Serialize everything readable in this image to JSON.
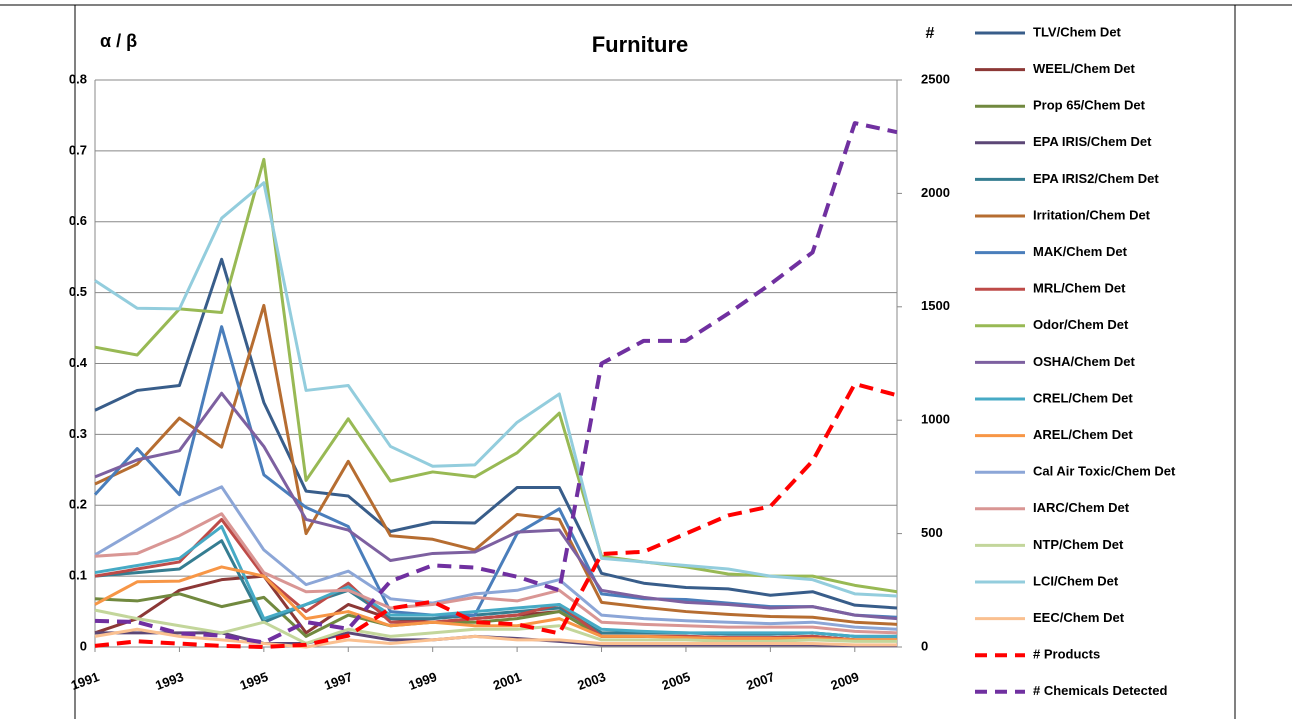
{
  "chart_data": {
    "type": "line",
    "title": "Furniture",
    "y_label": "α / β",
    "y2_label": "#",
    "x": [
      1991,
      1992,
      1993,
      1994,
      1995,
      1996,
      1997,
      1998,
      1999,
      2000,
      2001,
      2002,
      2003,
      2004,
      2005,
      2006,
      2007,
      2008,
      2009,
      2010
    ],
    "xlim": [
      1991,
      2010
    ],
    "xticks": [
      1991,
      1993,
      1995,
      1997,
      1999,
      2001,
      2003,
      2005,
      2007,
      2009
    ],
    "ylim": [
      0,
      0.8
    ],
    "yticks": [
      0,
      0.1,
      0.2,
      0.3,
      0.4,
      0.5,
      0.6,
      0.7,
      0.8
    ],
    "y2lim": [
      0,
      2500
    ],
    "y2ticks": [
      0,
      500,
      1000,
      1500,
      2000,
      2500
    ],
    "grid": true,
    "legend": "right",
    "series": [
      {
        "name": "TLV/Chem Det",
        "color": "#385d8a",
        "values": [
          0.334,
          0.362,
          0.369,
          0.547,
          0.345,
          0.22,
          0.213,
          0.163,
          0.176,
          0.175,
          0.225,
          0.225,
          0.104,
          0.09,
          0.084,
          0.082,
          0.073,
          0.078,
          0.059,
          0.055
        ]
      },
      {
        "name": "WEEL/Chem Det",
        "color": "#8c3836",
        "values": [
          0.02,
          0.04,
          0.08,
          0.095,
          0.1,
          0.02,
          0.06,
          0.04,
          0.035,
          0.04,
          0.045,
          0.05,
          0.015,
          0.015,
          0.015,
          0.013,
          0.013,
          0.015,
          0.01,
          0.01
        ]
      },
      {
        "name": "Prop 65/Chem Det",
        "color": "#71893f",
        "values": [
          0.068,
          0.065,
          0.075,
          0.057,
          0.07,
          0.015,
          0.045,
          0.03,
          0.035,
          0.035,
          0.04,
          0.05,
          0.015,
          0.015,
          0.015,
          0.012,
          0.012,
          0.015,
          0.01,
          0.01
        ]
      },
      {
        "name": "EPA IRIS/Chem Det",
        "color": "#5c4776",
        "values": [
          0.02,
          0.02,
          0.02,
          0.02,
          0.005,
          0.005,
          0.02,
          0.01,
          0.01,
          0.015,
          0.012,
          0.008,
          0.003,
          0.003,
          0.003,
          0.003,
          0.003,
          0.003,
          0.002,
          0.002
        ]
      },
      {
        "name": "EPA IRIS2/Chem Det",
        "color": "#357d91",
        "values": [
          0.1,
          0.105,
          0.11,
          0.15,
          0.035,
          0.06,
          0.08,
          0.04,
          0.04,
          0.045,
          0.05,
          0.055,
          0.02,
          0.02,
          0.02,
          0.018,
          0.018,
          0.02,
          0.015,
          0.015
        ]
      },
      {
        "name": "Irritation/Chem Det",
        "color": "#b66d31",
        "values": [
          0.23,
          0.258,
          0.323,
          0.282,
          0.482,
          0.16,
          0.262,
          0.157,
          0.152,
          0.137,
          0.187,
          0.18,
          0.063,
          0.056,
          0.05,
          0.046,
          0.043,
          0.042,
          0.035,
          0.032
        ]
      },
      {
        "name": "MAK/Chem Det",
        "color": "#4a7ebb",
        "values": [
          0.215,
          0.28,
          0.215,
          0.452,
          0.243,
          0.197,
          0.17,
          0.05,
          0.045,
          0.045,
          0.16,
          0.195,
          0.075,
          0.068,
          0.067,
          0.062,
          0.057,
          0.057,
          0.045,
          0.042
        ]
      },
      {
        "name": "MRL/Chem Det",
        "color": "#be4b48",
        "values": [
          0.1,
          0.11,
          0.12,
          0.18,
          0.1,
          0.05,
          0.09,
          0.035,
          0.035,
          0.04,
          0.045,
          0.06,
          0.015,
          0.015,
          0.015,
          0.013,
          0.013,
          0.015,
          0.01,
          0.01
        ]
      },
      {
        "name": "Odor/Chem Det",
        "color": "#98b954",
        "values": [
          0.423,
          0.412,
          0.477,
          0.472,
          0.688,
          0.235,
          0.322,
          0.234,
          0.247,
          0.24,
          0.274,
          0.33,
          0.128,
          0.12,
          0.113,
          0.103,
          0.1,
          0.1,
          0.087,
          0.078
        ]
      },
      {
        "name": "OSHA/Chem Det",
        "color": "#7d60a0",
        "values": [
          0.24,
          0.264,
          0.277,
          0.358,
          0.283,
          0.18,
          0.165,
          0.122,
          0.132,
          0.134,
          0.162,
          0.165,
          0.08,
          0.07,
          0.063,
          0.06,
          0.055,
          0.057,
          0.045,
          0.04
        ]
      },
      {
        "name": "CREL/Chem Det",
        "color": "#46aac5",
        "values": [
          0.105,
          0.115,
          0.125,
          0.17,
          0.04,
          0.06,
          0.085,
          0.045,
          0.045,
          0.05,
          0.055,
          0.06,
          0.025,
          0.022,
          0.02,
          0.02,
          0.02,
          0.02,
          0.015,
          0.015
        ]
      },
      {
        "name": "AREL/Chem Det",
        "color": "#f79646",
        "values": [
          0.06,
          0.092,
          0.093,
          0.113,
          0.1,
          0.04,
          0.05,
          0.03,
          0.035,
          0.03,
          0.03,
          0.04,
          0.015,
          0.015,
          0.013,
          0.012,
          0.012,
          0.012,
          0.01,
          0.01
        ]
      },
      {
        "name": "Cal Air Toxic/Chem Det",
        "color": "#8ca6d7",
        "values": [
          0.13,
          0.165,
          0.2,
          0.226,
          0.137,
          0.088,
          0.107,
          0.068,
          0.062,
          0.075,
          0.08,
          0.095,
          0.045,
          0.04,
          0.037,
          0.035,
          0.033,
          0.035,
          0.028,
          0.025
        ]
      },
      {
        "name": "IARC/Chem Det",
        "color": "#d99694",
        "values": [
          0.128,
          0.132,
          0.157,
          0.188,
          0.105,
          0.078,
          0.08,
          0.055,
          0.06,
          0.07,
          0.065,
          0.08,
          0.035,
          0.032,
          0.03,
          0.028,
          0.028,
          0.028,
          0.022,
          0.02
        ]
      },
      {
        "name": "NTP/Chem Det",
        "color": "#c3d69b",
        "values": [
          0.052,
          0.04,
          0.03,
          0.02,
          0.035,
          0.005,
          0.025,
          0.015,
          0.02,
          0.025,
          0.025,
          0.03,
          0.01,
          0.01,
          0.01,
          0.008,
          0.008,
          0.01,
          0.008,
          0.008
        ]
      },
      {
        "name": "LCI/Chem Det",
        "color": "#93cddd",
        "values": [
          0.517,
          0.478,
          0.477,
          0.605,
          0.655,
          0.362,
          0.369,
          0.283,
          0.255,
          0.257,
          0.317,
          0.357,
          0.125,
          0.12,
          0.115,
          0.11,
          0.1,
          0.095,
          0.075,
          0.072
        ]
      },
      {
        "name": "EEC/Chem Det",
        "color": "#fac090",
        "values": [
          0.015,
          0.025,
          0.015,
          0.01,
          0.005,
          0,
          0.01,
          0.005,
          0.01,
          0.015,
          0.01,
          0.01,
          0.005,
          0.005,
          0.005,
          0.005,
          0.005,
          0.005,
          0.003,
          0.003
        ]
      },
      {
        "name": "# Products",
        "color": "#ff0000",
        "axis": "y2",
        "dashed": true,
        "values": [
          5,
          25,
          15,
          5,
          0,
          10,
          50,
          170,
          200,
          110,
          100,
          60,
          410,
          420,
          500,
          580,
          620,
          820,
          1160,
          1110
        ]
      },
      {
        "name": "# Chemicals Detected",
        "color": "#7030a0",
        "axis": "y2",
        "dashed": true,
        "values": [
          115,
          110,
          60,
          50,
          20,
          110,
          80,
          290,
          360,
          350,
          310,
          250,
          1250,
          1350,
          1350,
          1470,
          1600,
          1740,
          2310,
          2270
        ]
      }
    ]
  }
}
